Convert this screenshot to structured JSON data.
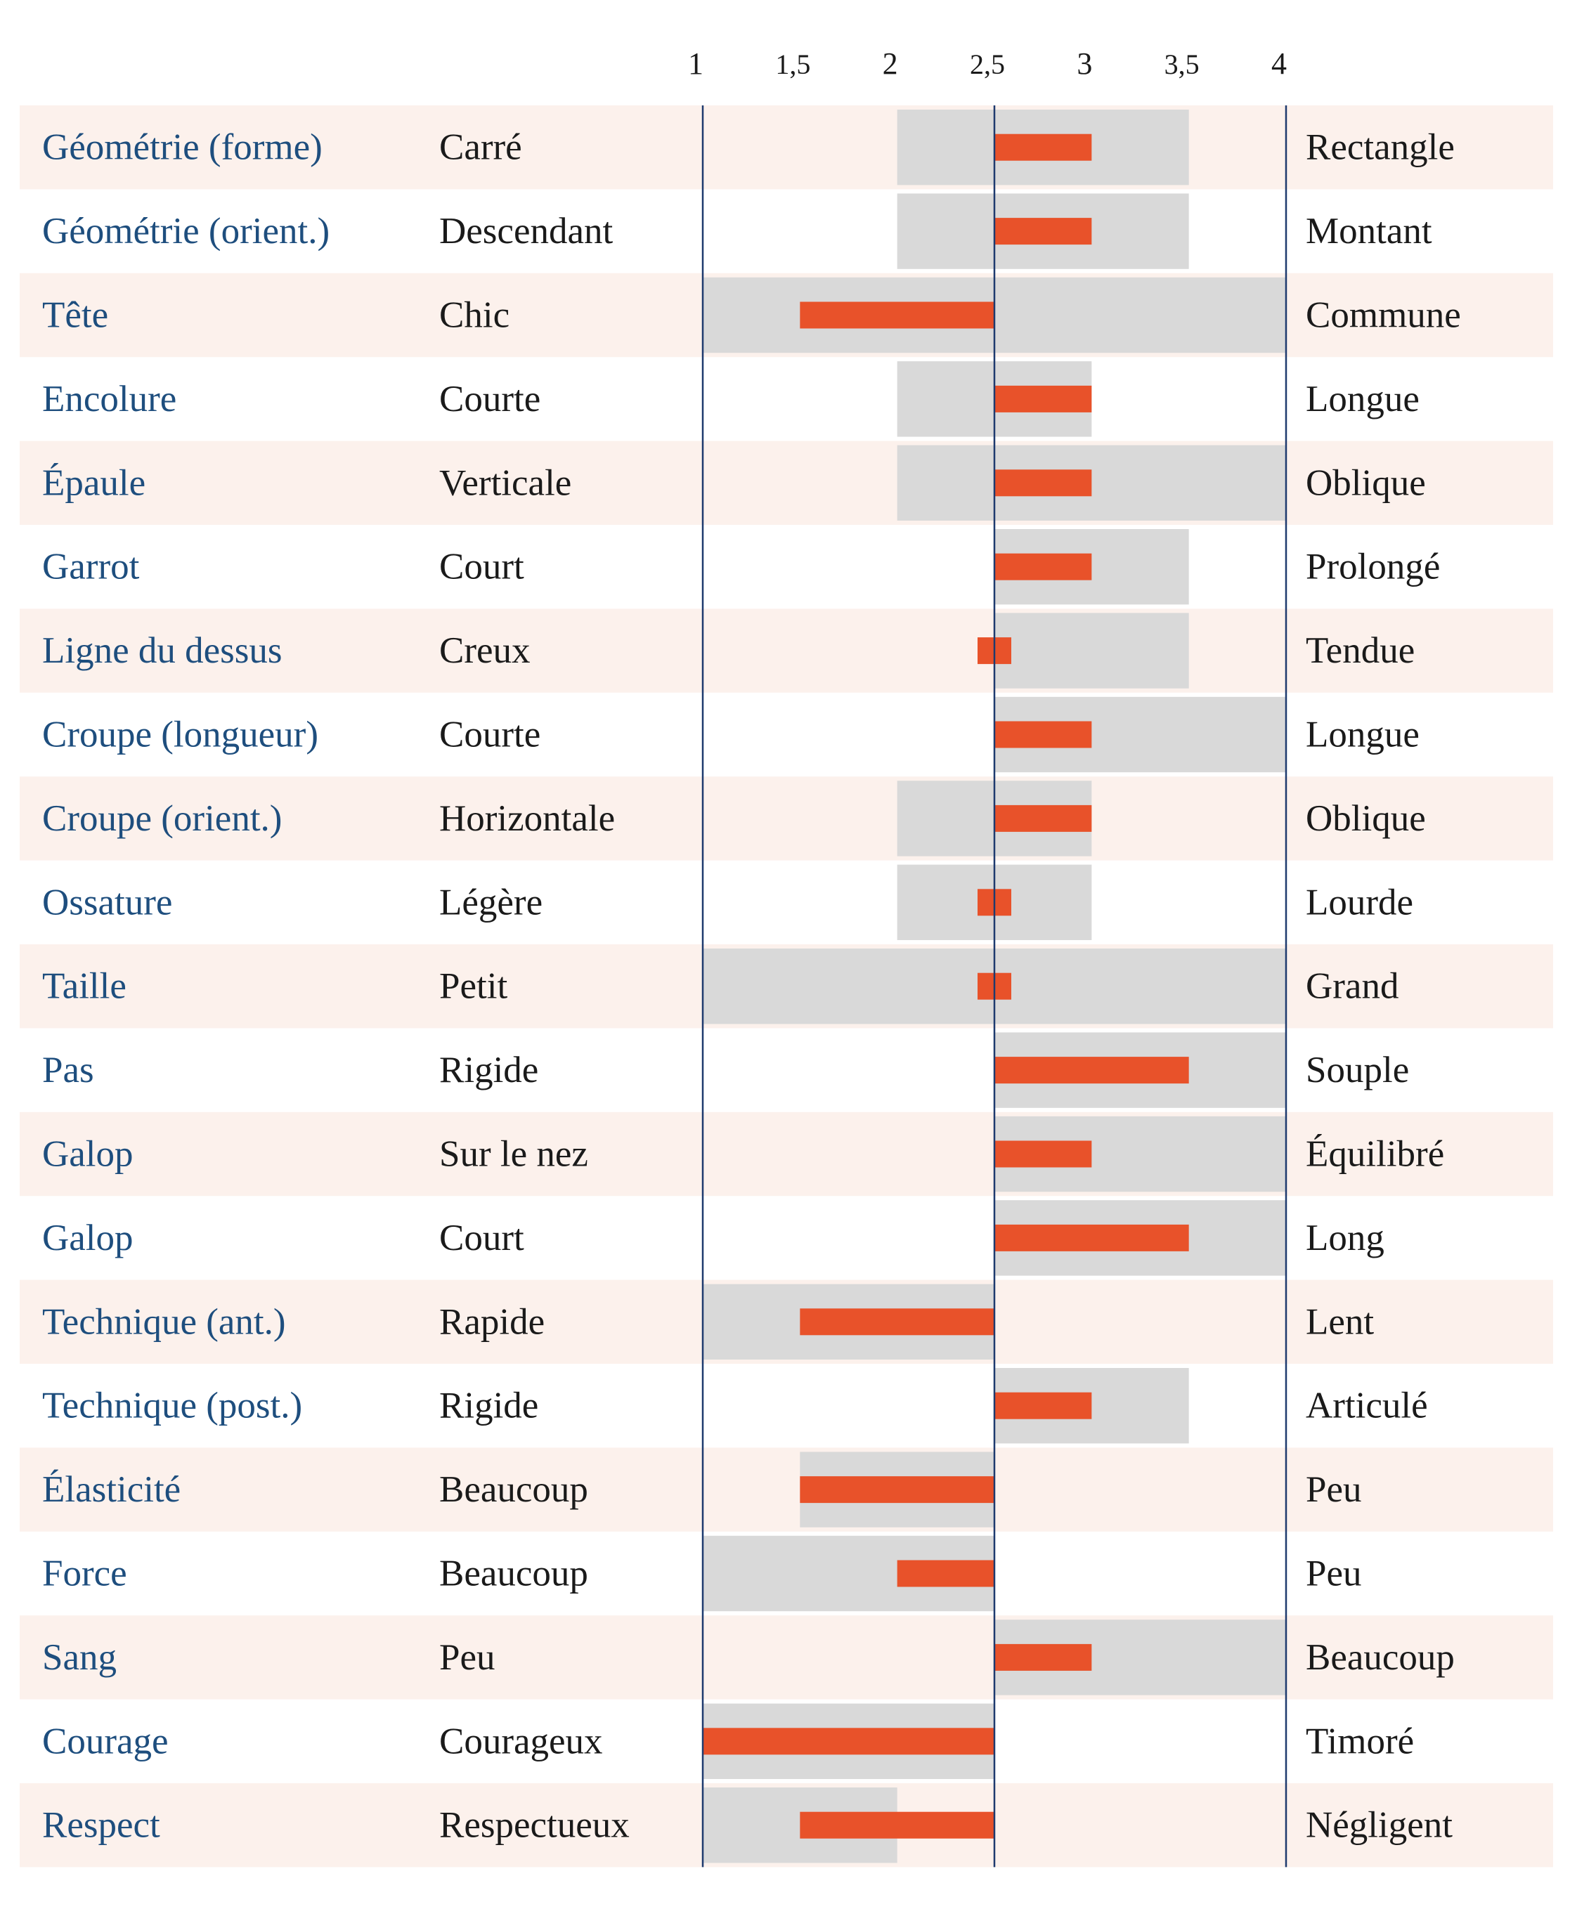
{
  "chart_data": {
    "type": "bar",
    "x_ticks": [
      {
        "value": 1,
        "label": "1"
      },
      {
        "value": 1.5,
        "label": "1,5"
      },
      {
        "value": 2,
        "label": "2"
      },
      {
        "value": 2.5,
        "label": "2,5"
      },
      {
        "value": 3,
        "label": "3"
      },
      {
        "value": 3.5,
        "label": "3,5"
      },
      {
        "value": 4,
        "label": "4"
      }
    ],
    "xlim": [
      1,
      4
    ],
    "reference_value": 2.5,
    "grid": false,
    "colors": {
      "value_bar": "#e8522a",
      "range_band": "#d9d9d9",
      "row_tint": "#fcf1ec",
      "trait_text": "#1e4e7e",
      "axis_line": "#1e3a6e"
    },
    "rows": [
      {
        "trait": "Géométrie (forme)",
        "left": "Carré",
        "right": "Rectangle",
        "range": [
          2,
          3.5
        ],
        "value": 3
      },
      {
        "trait": "Géométrie (orient.)",
        "left": "Descendant",
        "right": "Montant",
        "range": [
          2,
          3.5
        ],
        "value": 3
      },
      {
        "trait": "Tête",
        "left": "Chic",
        "right": "Commune",
        "range": [
          1,
          4
        ],
        "value": 1.5
      },
      {
        "trait": "Encolure",
        "left": "Courte",
        "right": "Longue",
        "range": [
          2,
          3
        ],
        "value": 3
      },
      {
        "trait": "Épaule",
        "left": "Verticale",
        "right": "Oblique",
        "range": [
          2,
          4
        ],
        "value": 3
      },
      {
        "trait": "Garrot",
        "left": "Court",
        "right": "Prolongé",
        "range": [
          2.5,
          3.5
        ],
        "value": 3
      },
      {
        "trait": "Ligne du dessus",
        "left": "Creux",
        "right": "Tendue",
        "range": [
          2.5,
          3.5
        ],
        "value": 2.5
      },
      {
        "trait": "Croupe (longueur)",
        "left": "Courte",
        "right": "Longue",
        "range": [
          2.5,
          4
        ],
        "value": 3
      },
      {
        "trait": "Croupe (orient.)",
        "left": "Horizontale",
        "right": "Oblique",
        "range": [
          2,
          3
        ],
        "value": 3
      },
      {
        "trait": "Ossature",
        "left": "Légère",
        "right": "Lourde",
        "range": [
          2,
          3
        ],
        "value": 2.5
      },
      {
        "trait": "Taille",
        "left": "Petit",
        "right": "Grand",
        "range": [
          1,
          4
        ],
        "value": 2.5
      },
      {
        "trait": "Pas",
        "left": "Rigide",
        "right": "Souple",
        "range": [
          2.5,
          4
        ],
        "value": 3.5
      },
      {
        "trait": "Galop",
        "left": "Sur le nez",
        "right": "Équilibré",
        "range": [
          2.5,
          4
        ],
        "value": 3
      },
      {
        "trait": "Galop",
        "left": "Court",
        "right": "Long",
        "range": [
          2.5,
          4
        ],
        "value": 3.5
      },
      {
        "trait": "Technique (ant.)",
        "left": "Rapide",
        "right": "Lent",
        "range": [
          1,
          2.5
        ],
        "value": 1.5
      },
      {
        "trait": "Technique (post.)",
        "left": "Rigide",
        "right": "Articulé",
        "range": [
          2.5,
          3.5
        ],
        "value": 3
      },
      {
        "trait": "Élasticité",
        "left": "Beaucoup",
        "right": "Peu",
        "range": [
          1.5,
          2.5
        ],
        "value": 1.5
      },
      {
        "trait": "Force",
        "left": "Beaucoup",
        "right": "Peu",
        "range": [
          1,
          2.5
        ],
        "value": 2
      },
      {
        "trait": "Sang",
        "left": "Peu",
        "right": "Beaucoup",
        "range": [
          2.5,
          4
        ],
        "value": 3
      },
      {
        "trait": "Courage",
        "left": "Courageux",
        "right": "Timoré",
        "range": [
          1,
          2.5
        ],
        "value": 1
      },
      {
        "trait": "Respect",
        "left": "Respectueux",
        "right": "Négligent",
        "range": [
          1,
          2
        ],
        "value": 1.5
      }
    ]
  }
}
